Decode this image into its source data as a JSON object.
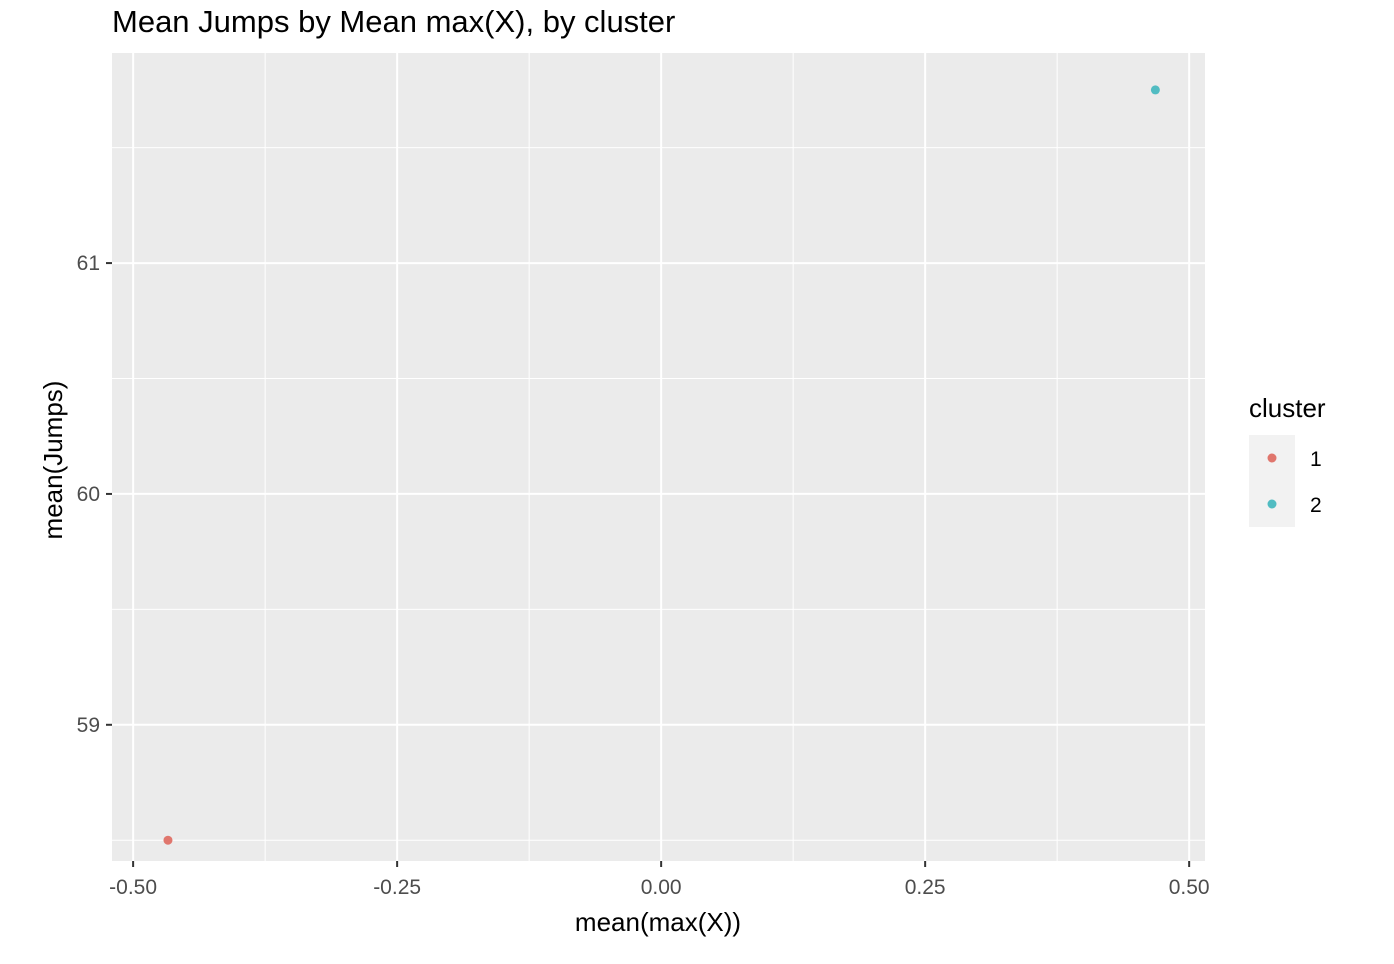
{
  "chart_data": {
    "type": "scatter",
    "title": "Mean Jumps by Mean max(X), by cluster",
    "xlabel": "mean(max(X))",
    "ylabel": "mean(Jumps)",
    "xlim": [
      -0.52,
      0.515
    ],
    "ylim": [
      58.41,
      61.91
    ],
    "x_ticks": [
      -0.5,
      -0.25,
      0.0,
      0.25,
      0.5
    ],
    "x_tick_labels": [
      "-0.50",
      "-0.25",
      "0.00",
      "0.25",
      "0.50"
    ],
    "y_ticks": [
      59,
      60,
      61
    ],
    "y_tick_labels": [
      "59",
      "60",
      "61"
    ],
    "grid": true,
    "legend": {
      "title": "cluster",
      "position": "right",
      "entries": [
        {
          "label": "1",
          "color": "#e0766d"
        },
        {
          "label": "2",
          "color": "#51bcc2"
        }
      ]
    },
    "series": [
      {
        "name": "1",
        "color": "#e0766d",
        "points": [
          {
            "x": -0.467,
            "y": 58.5
          }
        ]
      },
      {
        "name": "2",
        "color": "#51bcc2",
        "points": [
          {
            "x": 0.468,
            "y": 61.75
          }
        ]
      }
    ]
  },
  "colors": {
    "panel_background": "#ebebeb",
    "grid_line": "#ffffff",
    "axis_tick": "#333333",
    "legend_key_background": "#f2f2f2"
  }
}
